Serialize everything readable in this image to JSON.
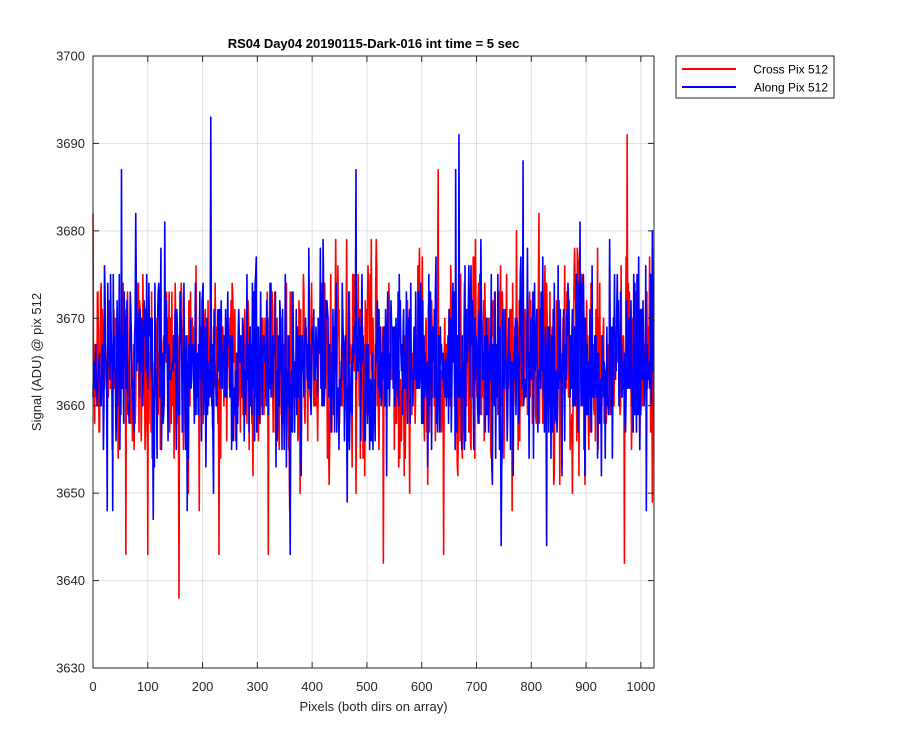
{
  "chart_data": {
    "type": "line",
    "title": "RS04 Day04 20190115-Dark-016 int time = 5 sec",
    "xlabel": "Pixels (both dirs on array)",
    "ylabel": "Signal (ADU) @ pix 512",
    "xlim": [
      0,
      1024
    ],
    "ylim": [
      3630,
      3700
    ],
    "xticks": [
      0,
      100,
      200,
      300,
      400,
      500,
      600,
      700,
      800,
      900,
      1000
    ],
    "yticks": [
      3630,
      3640,
      3650,
      3660,
      3670,
      3680,
      3690,
      3700
    ],
    "grid": true,
    "legend_position": "outside-top-right",
    "series": [
      {
        "name": "Cross Pix 512",
        "color": "#ff0000",
        "mean": 3665,
        "std": 6,
        "noise": "random",
        "n_points": 1024,
        "notable_points": [
          [
            157,
            3638
          ],
          [
            975,
            3691
          ],
          [
            630,
            3687
          ],
          [
            215,
            3684
          ],
          [
            530,
            3642
          ],
          [
            970,
            3642
          ],
          [
            60,
            3643
          ],
          [
            100,
            3643
          ],
          [
            230,
            3643
          ],
          [
            320,
            3643
          ],
          [
            640,
            3643
          ]
        ]
      },
      {
        "name": "Along Pix 512",
        "color": "#0000ff",
        "mean": 3665,
        "std": 5.5,
        "noise": "random",
        "n_points": 1024,
        "notable_points": [
          [
            215,
            3693
          ],
          [
            668,
            3691
          ],
          [
            52,
            3687
          ],
          [
            480,
            3687
          ],
          [
            662,
            3687
          ],
          [
            785,
            3688
          ],
          [
            360,
            3643
          ],
          [
            745,
            3644
          ],
          [
            828,
            3644
          ],
          [
            1010,
            3648
          ],
          [
            110,
            3647
          ]
        ]
      }
    ]
  }
}
